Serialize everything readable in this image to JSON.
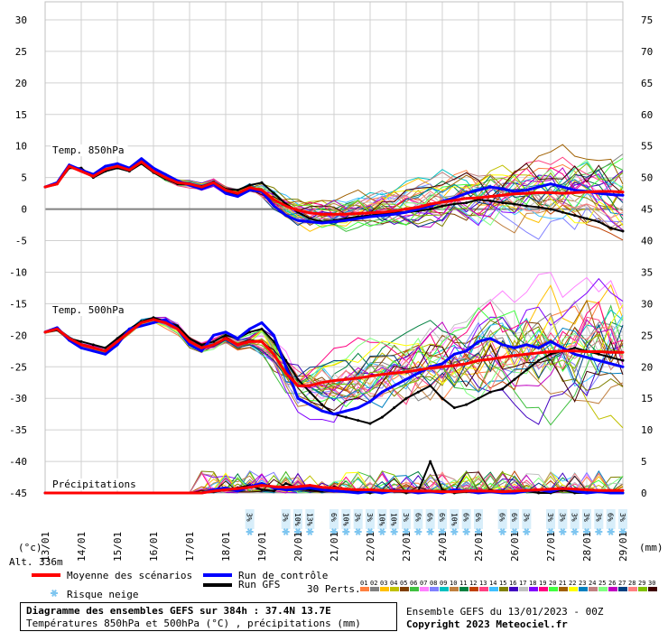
{
  "chart_data": {
    "type": "line",
    "left_axis_ticks": [
      "30",
      "25",
      "20",
      "15",
      "10",
      "5",
      "0",
      "-5",
      "-10",
      "-15",
      "-20",
      "-25",
      "-30",
      "-35",
      "-40",
      "-45"
    ],
    "right_axis_ticks": [
      "75",
      "70",
      "65",
      "60",
      "55",
      "50",
      "45",
      "40",
      "35",
      "30",
      "25",
      "20",
      "15",
      "10",
      "5",
      "0"
    ],
    "left_unit": "(°c)",
    "right_unit": "(mm)",
    "ylim_left": [
      -45,
      30
    ],
    "x_dates": [
      "13/01",
      "14/01",
      "15/01",
      "16/01",
      "17/01",
      "18/01",
      "19/01",
      "20/01",
      "21/01",
      "22/01",
      "23/01",
      "24/01",
      "25/01",
      "26/01",
      "27/01",
      "28/01",
      "29/01"
    ],
    "panel_labels": {
      "t850": "Temp. 850hPa",
      "t500": "Temp. 500hPa",
      "precip": "Précipitations"
    },
    "altitude_label": "Alt. 336m",
    "series": [
      {
        "name": "Moyenne des scénarios",
        "color": "#ff0000",
        "t850": [
          3.5,
          4.0,
          6.8,
          6.0,
          5.2,
          6.3,
          6.8,
          6.2,
          7.5,
          6.0,
          5.0,
          4.2,
          4.0,
          3.5,
          4.2,
          3.0,
          2.5,
          3.4,
          3.0,
          1.5,
          0.5,
          -0.2,
          -0.6,
          -0.8,
          -0.8,
          -0.8,
          -0.7,
          -0.6,
          -0.5,
          -0.3,
          0.0,
          0.3,
          0.8,
          1.1,
          1.4,
          1.7,
          1.8,
          2.0,
          2.2,
          2.4,
          2.5,
          2.6,
          2.6,
          2.5,
          2.6,
          2.7,
          2.8,
          2.8,
          2.7
        ],
        "t500": [
          -19.5,
          -19.0,
          -20.5,
          -21.5,
          -22.0,
          -22.5,
          -21.0,
          -19.5,
          -18.0,
          -17.5,
          -18.0,
          -19.0,
          -21.0,
          -22.0,
          -21.5,
          -20.5,
          -21.5,
          -21.0,
          -21.0,
          -23.0,
          -26.0,
          -28.0,
          -28.0,
          -27.5,
          -27.2,
          -27.0,
          -26.8,
          -26.5,
          -26.2,
          -26.0,
          -25.8,
          -25.5,
          -25.2,
          -25.0,
          -24.8,
          -24.5,
          -24.0,
          -23.8,
          -23.5,
          -23.2,
          -23.0,
          -22.8,
          -22.6,
          -22.5,
          -22.5,
          -22.6,
          -22.6,
          -22.7,
          -22.7
        ],
        "precip": [
          0,
          0,
          0,
          0,
          0,
          0,
          0,
          0,
          0,
          0,
          0,
          0,
          0,
          0,
          0.3,
          0.5,
          0.7,
          0.9,
          1.2,
          1.0,
          0.9,
          1.0,
          1.2,
          0.9,
          0.8,
          0.6,
          0.5,
          0.5,
          0.4,
          0.3,
          0.3,
          0.3,
          0.3,
          0.2,
          0.2,
          0.3,
          0.3,
          0.3,
          0.2,
          0.3,
          0.4,
          0.5,
          0.6,
          0.7,
          0.6,
          0.5,
          0.4,
          0.4,
          0.4
        ]
      },
      {
        "name": "Run de contrôle",
        "color": "#0000ff",
        "t850": [
          3.5,
          4.2,
          7.0,
          6.2,
          5.5,
          6.8,
          7.2,
          6.5,
          8.0,
          6.5,
          5.5,
          4.5,
          3.8,
          3.2,
          4.0,
          2.5,
          2.0,
          3.0,
          2.8,
          0.5,
          -1.0,
          -1.8,
          -2.0,
          -2.2,
          -2.0,
          -1.8,
          -1.5,
          -1.2,
          -1.0,
          -0.8,
          -0.5,
          0.0,
          0.5,
          1.2,
          1.8,
          2.5,
          3.0,
          3.5,
          3.2,
          2.8,
          3.0,
          3.5,
          4.0,
          3.5,
          3.0,
          2.8,
          2.5,
          2.3,
          2.2
        ],
        "t500": [
          -19.5,
          -18.8,
          -20.8,
          -22.0,
          -22.5,
          -23.0,
          -21.5,
          -19.0,
          -18.5,
          -18.0,
          -17.5,
          -19.0,
          -21.5,
          -22.5,
          -20.0,
          -19.5,
          -20.5,
          -19.0,
          -18.0,
          -20.0,
          -25.0,
          -30.0,
          -31.0,
          -32.0,
          -32.5,
          -32.0,
          -31.5,
          -30.5,
          -29.0,
          -28.0,
          -27.0,
          -26.0,
          -25.0,
          -24.5,
          -23.0,
          -22.5,
          -21.0,
          -20.5,
          -21.5,
          -22.0,
          -21.5,
          -22.0,
          -21.0,
          -22.0,
          -23.0,
          -23.5,
          -24.0,
          -24.5,
          -25.0
        ],
        "precip": [
          0,
          0,
          0,
          0,
          0,
          0,
          0,
          0,
          0,
          0,
          0,
          0,
          0,
          0,
          0.5,
          0.8,
          0.3,
          1.0,
          1.5,
          0.8,
          0.5,
          0.6,
          0.8,
          0.5,
          0.3,
          0.2,
          0.0,
          0.3,
          0.0,
          0.4,
          0.3,
          0.0,
          0.2,
          0.0,
          0.5,
          0.3,
          0.0,
          0.2,
          0.0,
          0.0,
          0.3,
          0.5,
          0.2,
          0.8,
          0.3,
          0.0,
          0.2,
          0.0,
          0.0
        ]
      },
      {
        "name": "Run GFS",
        "color": "#000000",
        "t850": [
          3.5,
          4.0,
          6.5,
          6.5,
          5.0,
          6.0,
          6.5,
          6.0,
          7.2,
          5.8,
          4.8,
          4.0,
          3.9,
          3.6,
          4.3,
          3.2,
          3.0,
          3.8,
          4.2,
          2.5,
          0.8,
          -0.5,
          -1.5,
          -2.0,
          -1.8,
          -1.5,
          -1.2,
          -1.0,
          -0.8,
          -0.5,
          -0.5,
          -0.3,
          0.0,
          0.5,
          0.8,
          1.0,
          1.5,
          1.3,
          1.0,
          0.8,
          0.5,
          0.3,
          0.0,
          -0.5,
          -1.0,
          -1.5,
          -2.0,
          -3.0,
          -3.5
        ],
        "t500": [
          -19.5,
          -19.2,
          -20.5,
          -21.0,
          -21.5,
          -22.0,
          -20.5,
          -19.0,
          -17.8,
          -17.2,
          -17.8,
          -18.5,
          -20.5,
          -21.5,
          -21.0,
          -20.0,
          -20.5,
          -19.5,
          -19.0,
          -21.0,
          -24.0,
          -27.0,
          -29.0,
          -31.0,
          -32.5,
          -33.0,
          -33.5,
          -34.0,
          -33.0,
          -31.5,
          -30.0,
          -29.0,
          -28.0,
          -30.0,
          -31.5,
          -31.0,
          -30.0,
          -29.0,
          -28.5,
          -27.0,
          -25.5,
          -24.0,
          -23.0,
          -22.5,
          -22.0,
          -22.5,
          -23.0,
          -23.5,
          -24.0
        ],
        "precip": [
          0,
          0,
          0,
          0,
          0,
          0,
          0,
          0,
          0,
          0,
          0,
          0,
          0,
          0,
          0.2,
          0.5,
          0.8,
          1.2,
          0.5,
          0.3,
          1.5,
          0.8,
          0.5,
          0.3,
          1.0,
          0.5,
          0.2,
          0.0,
          0.3,
          0.5,
          0.0,
          0.3,
          5.0,
          0.5,
          0.0,
          0.2,
          0.0,
          0.5,
          0.0,
          0.0,
          0.3,
          0.0,
          0.0,
          0.5,
          0.0,
          0.0,
          0.2,
          0.0,
          0.0
        ]
      }
    ],
    "snow_risk": [
      {
        "x_index": 17,
        "labels": [
          "3%"
        ]
      },
      {
        "x_index": 20,
        "labels": [
          "3%"
        ]
      },
      {
        "x_index": 21,
        "labels": [
          "10%"
        ]
      },
      {
        "x_index": 22,
        "labels": [
          "13%"
        ]
      },
      {
        "x_index": 24,
        "labels": [
          "6%"
        ]
      },
      {
        "x_index": 25,
        "labels": [
          "10%"
        ]
      },
      {
        "x_index": 26,
        "labels": [
          "3%"
        ]
      },
      {
        "x_index": 27,
        "labels": [
          "3%"
        ]
      },
      {
        "x_index": 28,
        "labels": [
          "10%"
        ]
      },
      {
        "x_index": 29,
        "labels": [
          "10%"
        ]
      },
      {
        "x_index": 30,
        "labels": [
          "3%"
        ]
      },
      {
        "x_index": 31,
        "labels": [
          "6%"
        ]
      },
      {
        "x_index": 32,
        "labels": [
          "6%"
        ]
      },
      {
        "x_index": 33,
        "labels": [
          "6%"
        ]
      },
      {
        "x_index": 34,
        "labels": [
          "10%"
        ]
      },
      {
        "x_index": 35,
        "labels": [
          "6%"
        ]
      },
      {
        "x_index": 36,
        "labels": [
          "6%"
        ]
      },
      {
        "x_index": 38,
        "labels": [
          "6%"
        ]
      },
      {
        "x_index": 39,
        "labels": [
          "6%"
        ]
      },
      {
        "x_index": 40,
        "labels": [
          "3%"
        ]
      },
      {
        "x_index": 42,
        "labels": [
          "3%"
        ]
      },
      {
        "x_index": 43,
        "labels": [
          "3%"
        ]
      },
      {
        "x_index": 44,
        "labels": [
          "3%"
        ]
      },
      {
        "x_index": 45,
        "labels": [
          "3%"
        ]
      },
      {
        "x_index": 46,
        "labels": [
          "3%"
        ]
      },
      {
        "x_index": 47,
        "labels": [
          "6%"
        ]
      },
      {
        "x_index": 48,
        "labels": [
          "3%"
        ]
      }
    ]
  },
  "legend": {
    "mean": "Moyenne des scénarios",
    "control": "Run de contrôle",
    "gfs": "Run GFS",
    "snow": "Risque neige",
    "perts": "30 Perts.",
    "pert_labels": [
      "01",
      "02",
      "03",
      "04",
      "05",
      "06",
      "07",
      "08",
      "09",
      "10",
      "11",
      "12",
      "13",
      "14",
      "15",
      "16",
      "17",
      "18",
      "19",
      "20",
      "21",
      "22",
      "23",
      "24",
      "25",
      "26",
      "27",
      "28",
      "29",
      "30"
    ],
    "pert_colors": [
      "#ff8040",
      "#808080",
      "#ffc000",
      "#c0c000",
      "#804000",
      "#40c040",
      "#ff80ff",
      "#8080ff",
      "#00c0c0",
      "#c08040",
      "#008040",
      "#c04000",
      "#ff4080",
      "#40c0ff",
      "#808000",
      "#4000c0",
      "#c0c0c0",
      "#8000ff",
      "#ff0080",
      "#40ff40",
      "#a06000",
      "#ffff00",
      "#0080c0",
      "#c08080",
      "#80ff80",
      "#c000c0",
      "#004080",
      "#ff8080",
      "#80c000",
      "#400000"
    ]
  },
  "footer": {
    "title": "Diagramme des ensembles GEFS sur 384h : 37.4N 13.7E",
    "subtitle": "Températures 850hPa et 500hPa (°C) , précipitations (mm)",
    "run": "Ensemble GEFS du 13/01/2023 - 00Z",
    "copyright": "Copyright 2023 Meteociel.fr"
  }
}
